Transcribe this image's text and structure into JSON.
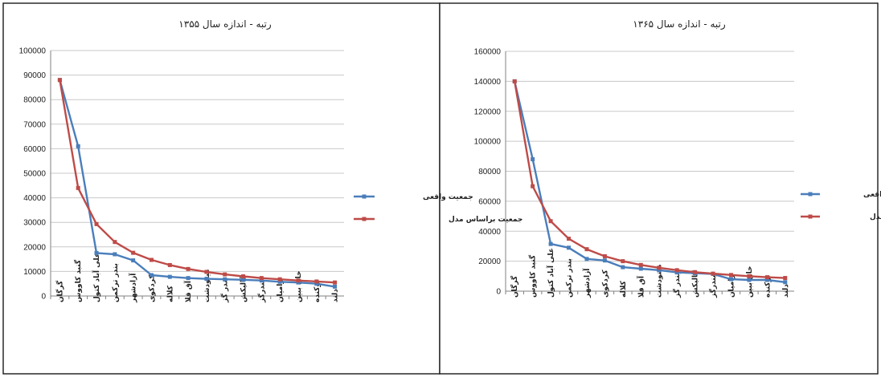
{
  "colors": {
    "series_actual": "#4a7ebb",
    "series_model": "#be4b48"
  },
  "chart_data": [
    {
      "type": "line",
      "title": "رتبه - اندازه سال ۱۳۵۵",
      "categories": [
        "گرگان",
        "گنبد کاووس",
        "علی آباد کتول",
        "بندر ترکمن",
        "آزادشهر",
        "کردکوی",
        "کلاله",
        "آق قلا",
        "مینودشت",
        "بندر گز",
        "گالیکش",
        "بندرگز",
        "رامیان",
        "خان ببین",
        "نوکنده",
        "دلند"
      ],
      "ylim": [
        0,
        100000
      ],
      "yticks": [
        0,
        10000,
        20000,
        30000,
        40000,
        50000,
        60000,
        70000,
        80000,
        90000,
        100000
      ],
      "legend_position": "right",
      "series": [
        {
          "name": "جمعیت واقعی",
          "values": [
            88000,
            61000,
            17500,
            17000,
            14500,
            8500,
            7800,
            7300,
            7000,
            6800,
            6600,
            6300,
            5800,
            5500,
            5000,
            3800
          ]
        },
        {
          "name": "جمعیت براساس مدل",
          "values": [
            88000,
            44000,
            29300,
            22000,
            17600,
            14700,
            12600,
            11000,
            9800,
            8800,
            8000,
            7300,
            6800,
            6300,
            5900,
            5500
          ]
        }
      ]
    },
    {
      "type": "line",
      "title": "رتبه - اندازه سال ۱۳۶۵",
      "categories": [
        "گرگان",
        "گنبد کاووس",
        "علی آباد کتول",
        "بندر ترکمن",
        "آزادشهر",
        "کردکوی",
        "کلاله",
        "آق قلا",
        "مینودشت",
        "بندر گز",
        "گالیکش",
        "بندرگز",
        "رامیان",
        "خان ببین",
        "نوکنده",
        "دلند"
      ],
      "ylim": [
        0,
        160000
      ],
      "yticks": [
        0,
        20000,
        40000,
        60000,
        80000,
        100000,
        120000,
        140000,
        160000
      ],
      "legend_position": "right",
      "series": [
        {
          "name": "جمعیت واقعی",
          "values": [
            140000,
            88000,
            31500,
            29000,
            21500,
            20500,
            16000,
            15000,
            14000,
            12500,
            12000,
            11500,
            8000,
            7500,
            7500,
            6000
          ]
        },
        {
          "name": "جمعیت براساس مدل",
          "values": [
            140000,
            70000,
            46700,
            35000,
            28000,
            23300,
            20000,
            17500,
            15600,
            14000,
            12700,
            11700,
            10800,
            10000,
            9300,
            8800
          ]
        }
      ]
    }
  ]
}
